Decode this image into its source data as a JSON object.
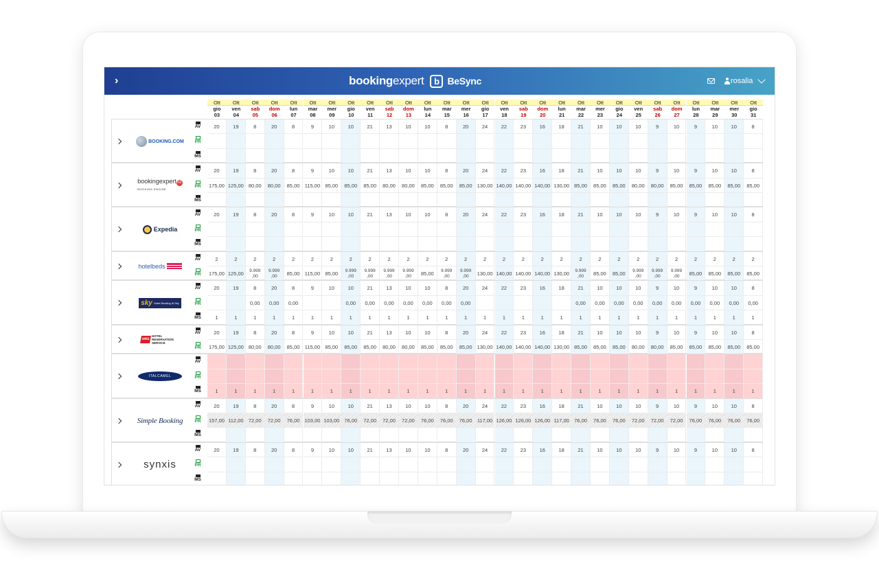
{
  "header": {
    "brand_main_bold": "booking",
    "brand_main_light": "expert",
    "brand_logo_letter": "b",
    "brand_product": "BeSync",
    "user_name": "rosalia"
  },
  "row_labels": {
    "av": "AV",
    "pr": "PR",
    "ms": "MS"
  },
  "dates": [
    {
      "month": "Ott",
      "dow": "gio",
      "day": "03",
      "weekend": false
    },
    {
      "month": "Ott",
      "dow": "ven",
      "day": "04",
      "weekend": false
    },
    {
      "month": "Ott",
      "dow": "sab",
      "day": "05",
      "weekend": true
    },
    {
      "month": "Ott",
      "dow": "dom",
      "day": "06",
      "weekend": true
    },
    {
      "month": "Ott",
      "dow": "lun",
      "day": "07",
      "weekend": false
    },
    {
      "month": "Ott",
      "dow": "mar",
      "day": "08",
      "weekend": false
    },
    {
      "month": "Ott",
      "dow": "mer",
      "day": "09",
      "weekend": false
    },
    {
      "month": "Ott",
      "dow": "gio",
      "day": "10",
      "weekend": false
    },
    {
      "month": "Ott",
      "dow": "ven",
      "day": "11",
      "weekend": false
    },
    {
      "month": "Ott",
      "dow": "sab",
      "day": "12",
      "weekend": true
    },
    {
      "month": "Ott",
      "dow": "dom",
      "day": "13",
      "weekend": true
    },
    {
      "month": "Ott",
      "dow": "lun",
      "day": "14",
      "weekend": false
    },
    {
      "month": "Ott",
      "dow": "mar",
      "day": "15",
      "weekend": false
    },
    {
      "month": "Ott",
      "dow": "mer",
      "day": "16",
      "weekend": false
    },
    {
      "month": "Ott",
      "dow": "gio",
      "day": "17",
      "weekend": false
    },
    {
      "month": "Ott",
      "dow": "ven",
      "day": "18",
      "weekend": false
    },
    {
      "month": "Ott",
      "dow": "sab",
      "day": "19",
      "weekend": true
    },
    {
      "month": "Ott",
      "dow": "dom",
      "day": "20",
      "weekend": true
    },
    {
      "month": "Ott",
      "dow": "lun",
      "day": "21",
      "weekend": false
    },
    {
      "month": "Ott",
      "dow": "mar",
      "day": "22",
      "weekend": false
    },
    {
      "month": "Ott",
      "dow": "mer",
      "day": "23",
      "weekend": false
    },
    {
      "month": "Ott",
      "dow": "gio",
      "day": "24",
      "weekend": false
    },
    {
      "month": "Ott",
      "dow": "ven",
      "day": "25",
      "weekend": false
    },
    {
      "month": "Ott",
      "dow": "sab",
      "day": "26",
      "weekend": true
    },
    {
      "month": "Ott",
      "dow": "dom",
      "day": "27",
      "weekend": true
    },
    {
      "month": "Ott",
      "dow": "lun",
      "day": "28",
      "weekend": false
    },
    {
      "month": "Ott",
      "dow": "mar",
      "day": "29",
      "weekend": false
    },
    {
      "month": "Ott",
      "dow": "mer",
      "day": "30",
      "weekend": false
    },
    {
      "month": "Ott",
      "dow": "gio",
      "day": "31",
      "weekend": false
    }
  ],
  "highlight_columns": [
    1,
    3,
    7,
    13,
    15,
    17,
    19,
    21,
    23,
    25,
    27
  ],
  "channels": [
    {
      "key": "booking",
      "logo_text": "BOOKING.COM",
      "rows": [
        "AV",
        "PR",
        "MS"
      ],
      "av": [
        "20",
        "19",
        "8",
        "20",
        "8",
        "9",
        "10",
        "10",
        "21",
        "13",
        "10",
        "10",
        "8",
        "20",
        "24",
        "22",
        "23",
        "16",
        "18",
        "21",
        "10",
        "10",
        "10",
        "9",
        "10",
        "9",
        "10",
        "10",
        "8"
      ],
      "pr": null,
      "ms": null,
      "state": ""
    },
    {
      "key": "bookingexpert",
      "logo_text": "bookingexpert",
      "logo_sub": "BOOKING ENGINE",
      "logo_badge": "R2",
      "rows": [
        "AV",
        "PR",
        "MS"
      ],
      "av": [
        "20",
        "19",
        "8",
        "20",
        "8",
        "9",
        "10",
        "10",
        "21",
        "13",
        "10",
        "10",
        "8",
        "20",
        "24",
        "22",
        "23",
        "16",
        "18",
        "21",
        "10",
        "10",
        "10",
        "9",
        "10",
        "9",
        "10",
        "10",
        "8"
      ],
      "pr": [
        "175,00",
        "125,00",
        "80,00",
        "80,00",
        "85,00",
        "115,00",
        "85,00",
        "85,00",
        "85,00",
        "80,00",
        "80,00",
        "85,00",
        "85,00",
        "85,00",
        "130,00",
        "140,00",
        "140,00",
        "140,00",
        "130,00",
        "85,00",
        "85,00",
        "85,00",
        "80,00",
        "80,00",
        "85,00",
        "85,00",
        "85,00",
        "85,00",
        "85,00"
      ],
      "ms": null,
      "state": ""
    },
    {
      "key": "expedia",
      "logo_text": "Expedia",
      "rows": [
        "AV",
        "PR",
        "MS"
      ],
      "av": [
        "20",
        "19",
        "8",
        "20",
        "8",
        "9",
        "10",
        "10",
        "21",
        "13",
        "10",
        "10",
        "8",
        "20",
        "24",
        "22",
        "23",
        "16",
        "18",
        "21",
        "10",
        "10",
        "10",
        "9",
        "10",
        "9",
        "10",
        "10",
        "8"
      ],
      "pr": null,
      "ms": null,
      "state": ""
    },
    {
      "key": "hotelbeds",
      "logo_text": "hotelbeds",
      "rows": [
        "AV",
        "PR"
      ],
      "av": [
        "2",
        "2",
        "2",
        "2",
        "2",
        "2",
        "2",
        "2",
        "2",
        "2",
        "2",
        "2",
        "2",
        "2",
        "2",
        "2",
        "2",
        "2",
        "2",
        "2",
        "2",
        "2",
        "2",
        "2",
        "2",
        "2",
        "2",
        "2",
        "2"
      ],
      "pr": [
        "175,00",
        "125,00",
        "9.999\n,00",
        "9.999\n,00",
        "85,00",
        "115,00",
        "85,00",
        "9.999\n,00",
        "9.999\n,00",
        "9.999\n,00",
        "9.999\n,00",
        "85,00",
        "9.999\n,00",
        "9.999\n,00",
        "130,00",
        "140,00",
        "140,00",
        "140,00",
        "130,00",
        "9.999\n,00",
        "85,00",
        "85,00",
        "9.999\n,00",
        "9.999\n,00",
        "9.999\n,00",
        "85,00",
        "85,00",
        "85,00",
        "85,00"
      ],
      "ms": null,
      "state": ""
    },
    {
      "key": "sky",
      "logo_text": "sky",
      "logo_sub": "Hotel Booking di Sky",
      "rows": [
        "AV",
        "PR",
        "MS"
      ],
      "av": [
        "20",
        "19",
        "8",
        "20",
        "8",
        "9",
        "10",
        "10",
        "21",
        "13",
        "10",
        "10",
        "8",
        "20",
        "24",
        "22",
        "23",
        "16",
        "18",
        "21",
        "10",
        "10",
        "10",
        "9",
        "10",
        "9",
        "10",
        "10",
        "8"
      ],
      "pr": [
        "",
        "",
        "0,00",
        "0,00",
        "0,00",
        "",
        "",
        "0,00",
        "0,00",
        "0,00",
        "0,00",
        "0,00",
        "0,00",
        "0,00",
        "",
        "",
        "",
        "",
        "",
        "0,00",
        "0,00",
        "0,00",
        "0,00",
        "0,00",
        "0,00",
        "0,00",
        "0,00",
        "0,00",
        "0,00"
      ],
      "ms": [
        "1",
        "1",
        "1",
        "1",
        "1",
        "1",
        "1",
        "1",
        "1",
        "1",
        "1",
        "1",
        "1",
        "1",
        "1",
        "1",
        "1",
        "1",
        "1",
        "1",
        "1",
        "1",
        "1",
        "1",
        "1",
        "1",
        "1",
        "1",
        "1"
      ],
      "state": ""
    },
    {
      "key": "hrs",
      "logo_text": "HRS",
      "logo_sub": "HOTEL RESERVATION SERVICE",
      "rows": [
        "AV",
        "PR"
      ],
      "av": [
        "20",
        "19",
        "8",
        "20",
        "8",
        "9",
        "10",
        "10",
        "21",
        "13",
        "10",
        "10",
        "8",
        "20",
        "24",
        "22",
        "23",
        "16",
        "18",
        "21",
        "10",
        "10",
        "10",
        "9",
        "10",
        "9",
        "10",
        "10",
        "8"
      ],
      "pr": [
        "175,00",
        "125,00",
        "80,00",
        "80,00",
        "85,00",
        "115,00",
        "85,00",
        "85,00",
        "85,00",
        "80,00",
        "80,00",
        "85,00",
        "85,00",
        "85,00",
        "130,00",
        "140,00",
        "140,00",
        "140,00",
        "130,00",
        "85,00",
        "85,00",
        "85,00",
        "80,00",
        "80,00",
        "85,00",
        "85,00",
        "85,00",
        "85,00",
        "85,00"
      ],
      "ms": null,
      "state": ""
    },
    {
      "key": "italcamel",
      "logo_text": "ITALCAMEL",
      "rows": [
        "AV",
        "PR",
        "MS"
      ],
      "av": null,
      "pr": null,
      "ms": [
        "1",
        "1",
        "1",
        "1",
        "1",
        "1",
        "1",
        "1",
        "1",
        "1",
        "1",
        "1",
        "1",
        "1",
        "1",
        "1",
        "1",
        "1",
        "1",
        "1",
        "1",
        "1",
        "1",
        "1",
        "1",
        "1",
        "1",
        "1",
        "1"
      ],
      "state": "error"
    },
    {
      "key": "simplebooking",
      "logo_text": "Simple Booking",
      "rows": [
        "AV",
        "PR",
        "MS"
      ],
      "av": [
        "20",
        "19",
        "8",
        "20",
        "8",
        "9",
        "10",
        "10",
        "21",
        "13",
        "10",
        "10",
        "8",
        "20",
        "24",
        "22",
        "23",
        "16",
        "18",
        "21",
        "10",
        "10",
        "10",
        "9",
        "10",
        "9",
        "10",
        "10",
        "8"
      ],
      "pr": [
        "157,00",
        "112,00",
        "72,00",
        "72,00",
        "76,00",
        "103,00",
        "103,00",
        "76,00",
        "72,00",
        "72,00",
        "72,00",
        "76,00",
        "76,00",
        "76,00",
        "117,00",
        "126,00",
        "126,00",
        "126,00",
        "117,00",
        "76,00",
        "76,00",
        "76,00",
        "72,00",
        "72,00",
        "72,00",
        "76,00",
        "76,00",
        "76,00",
        "76,00"
      ],
      "ms": null,
      "state": "striped_pr"
    },
    {
      "key": "synxis",
      "logo_text": "synxis",
      "rows": [
        "AV",
        "PR",
        "MS"
      ],
      "av": [
        "20",
        "19",
        "8",
        "20",
        "8",
        "9",
        "10",
        "10",
        "21",
        "13",
        "10",
        "10",
        "8",
        "20",
        "24",
        "22",
        "23",
        "16",
        "18",
        "21",
        "10",
        "10",
        "10",
        "9",
        "10",
        "9",
        "10",
        "10",
        "8"
      ],
      "pr": null,
      "ms": null,
      "state": ""
    }
  ]
}
